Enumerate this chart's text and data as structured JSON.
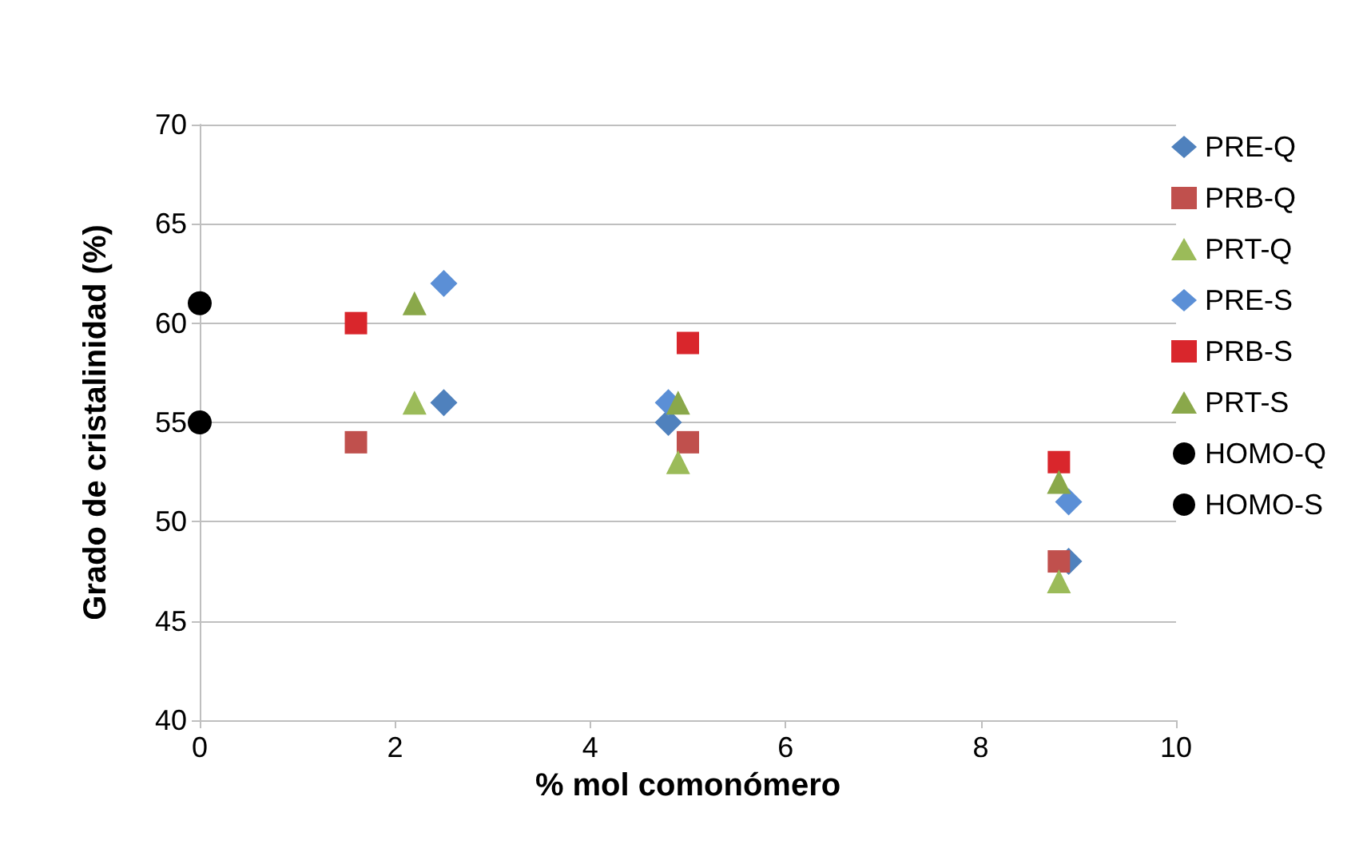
{
  "chart_data": {
    "type": "scatter",
    "xlabel": "% mol comonómero",
    "ylabel": "Grado de cristalinidad (%)",
    "xlim": [
      0,
      10
    ],
    "xticks": [
      0,
      2,
      4,
      6,
      8,
      10
    ],
    "ylim": [
      40,
      70
    ],
    "yticks": [
      40,
      45,
      50,
      55,
      60,
      65,
      70
    ],
    "grid": "y",
    "legend": "right",
    "series": [
      {
        "name": "PRE-Q",
        "color": "#4f81bd",
        "marker": "diamond",
        "x": [
          2.5,
          4.8,
          8.9
        ],
        "values": [
          56,
          55,
          48
        ]
      },
      {
        "name": "PRB-Q",
        "color": "#c0504d",
        "marker": "square",
        "x": [
          1.6,
          5,
          8.8
        ],
        "values": [
          54,
          54,
          48
        ]
      },
      {
        "name": "PRT-Q",
        "color": "#9bbb59",
        "marker": "triangle",
        "x": [
          2.2,
          4.9,
          8.8
        ],
        "values": [
          56,
          53,
          47
        ]
      },
      {
        "name": "PRE-S",
        "color": "#5b8fd6",
        "marker": "diamond",
        "x": [
          2.5,
          4.8,
          8.9
        ],
        "values": [
          62,
          56,
          51
        ]
      },
      {
        "name": "PRB-S",
        "color": "#d9262c",
        "marker": "square",
        "x": [
          1.6,
          5,
          8.8
        ],
        "values": [
          60,
          59,
          53
        ]
      },
      {
        "name": "PRT-S",
        "color": "#8aa84a",
        "marker": "triangle",
        "x": [
          2.2,
          4.9,
          8.8
        ],
        "values": [
          61,
          56,
          52
        ]
      },
      {
        "name": "HOMO-Q",
        "color": "#000000",
        "marker": "circle",
        "x": [
          0
        ],
        "values": [
          55
        ]
      },
      {
        "name": "HOMO-S",
        "color": "#000000",
        "marker": "circle",
        "x": [
          0
        ],
        "values": [
          61
        ]
      }
    ]
  }
}
